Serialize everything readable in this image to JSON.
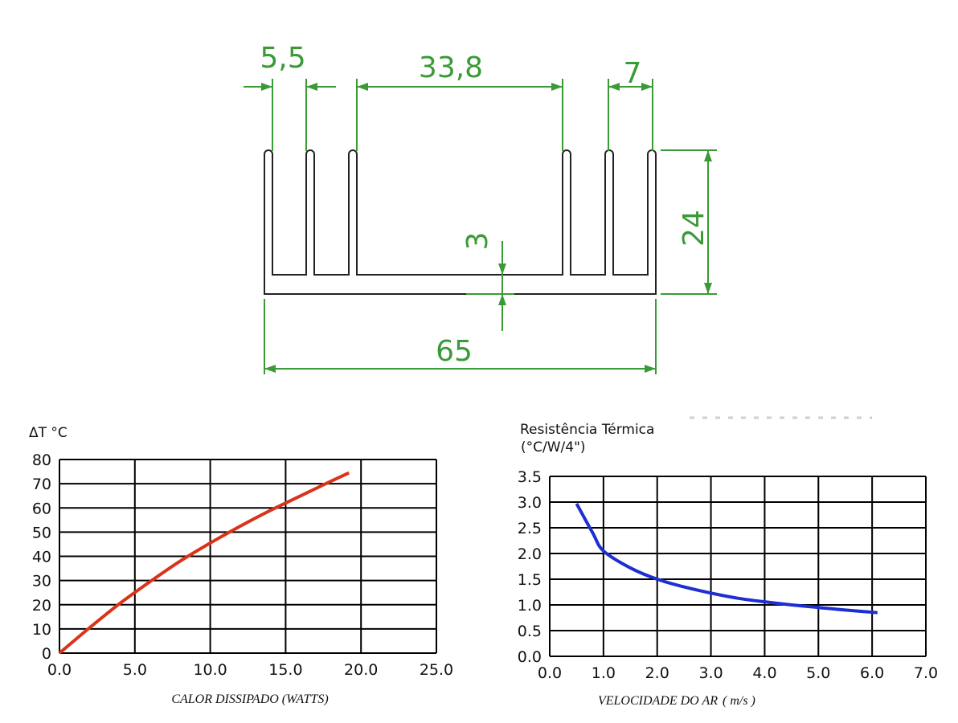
{
  "drawing": {
    "dim_fin": "5,5",
    "dim_gap": "33,8",
    "dim_fin_spacing": "7",
    "dim_height": "24",
    "dim_base": "3",
    "dim_width": "65",
    "line_color": "#3a9a36"
  },
  "chart_data": [
    {
      "type": "line",
      "title": "",
      "ylabel": "ΔT °C",
      "xlabel": "CALOR DISSIPADO (WATTS)",
      "xlim": [
        0,
        25
      ],
      "ylim": [
        0,
        80
      ],
      "x_ticks": [
        "0.0",
        "5.0",
        "10.0",
        "15.0",
        "20.0",
        "25.0"
      ],
      "y_ticks": [
        "0",
        "10",
        "20",
        "30",
        "40",
        "50",
        "60",
        "70",
        "80"
      ],
      "grid": true,
      "series": [
        {
          "color": "#d9331a",
          "x": [
            0,
            2,
            4,
            6,
            8,
            10,
            12,
            14,
            16,
            18,
            19.2
          ],
          "y": [
            0,
            10.5,
            20.5,
            29.5,
            38,
            45.5,
            52.5,
            59,
            65,
            71,
            74.5
          ]
        }
      ]
    },
    {
      "type": "line",
      "title": "",
      "ylabel": "Resistência Térmica",
      "ylabel2": "(°C/W/4\")",
      "xlabel": "VELOCIDADE DO AR",
      "xlabel_unit": "( m/s )",
      "xlim": [
        0,
        7
      ],
      "ylim": [
        0,
        3.5
      ],
      "x_ticks": [
        "0.0",
        "1.0",
        "2.0",
        "3.0",
        "4.0",
        "5.0",
        "6.0",
        "7.0"
      ],
      "y_ticks": [
        "0.0",
        "0.5",
        "1.0",
        "1.5",
        "2.0",
        "2.5",
        "3.0",
        "3.5"
      ],
      "grid": true,
      "series": [
        {
          "color": "#1d2fd1",
          "x": [
            0.5,
            0.8,
            1.0,
            1.5,
            2.0,
            2.5,
            3.0,
            3.5,
            4.0,
            4.5,
            5.0,
            5.5,
            6.1
          ],
          "y": [
            2.97,
            2.4,
            2.05,
            1.72,
            1.5,
            1.35,
            1.23,
            1.13,
            1.06,
            1.0,
            0.95,
            0.9,
            0.85
          ]
        }
      ]
    }
  ]
}
